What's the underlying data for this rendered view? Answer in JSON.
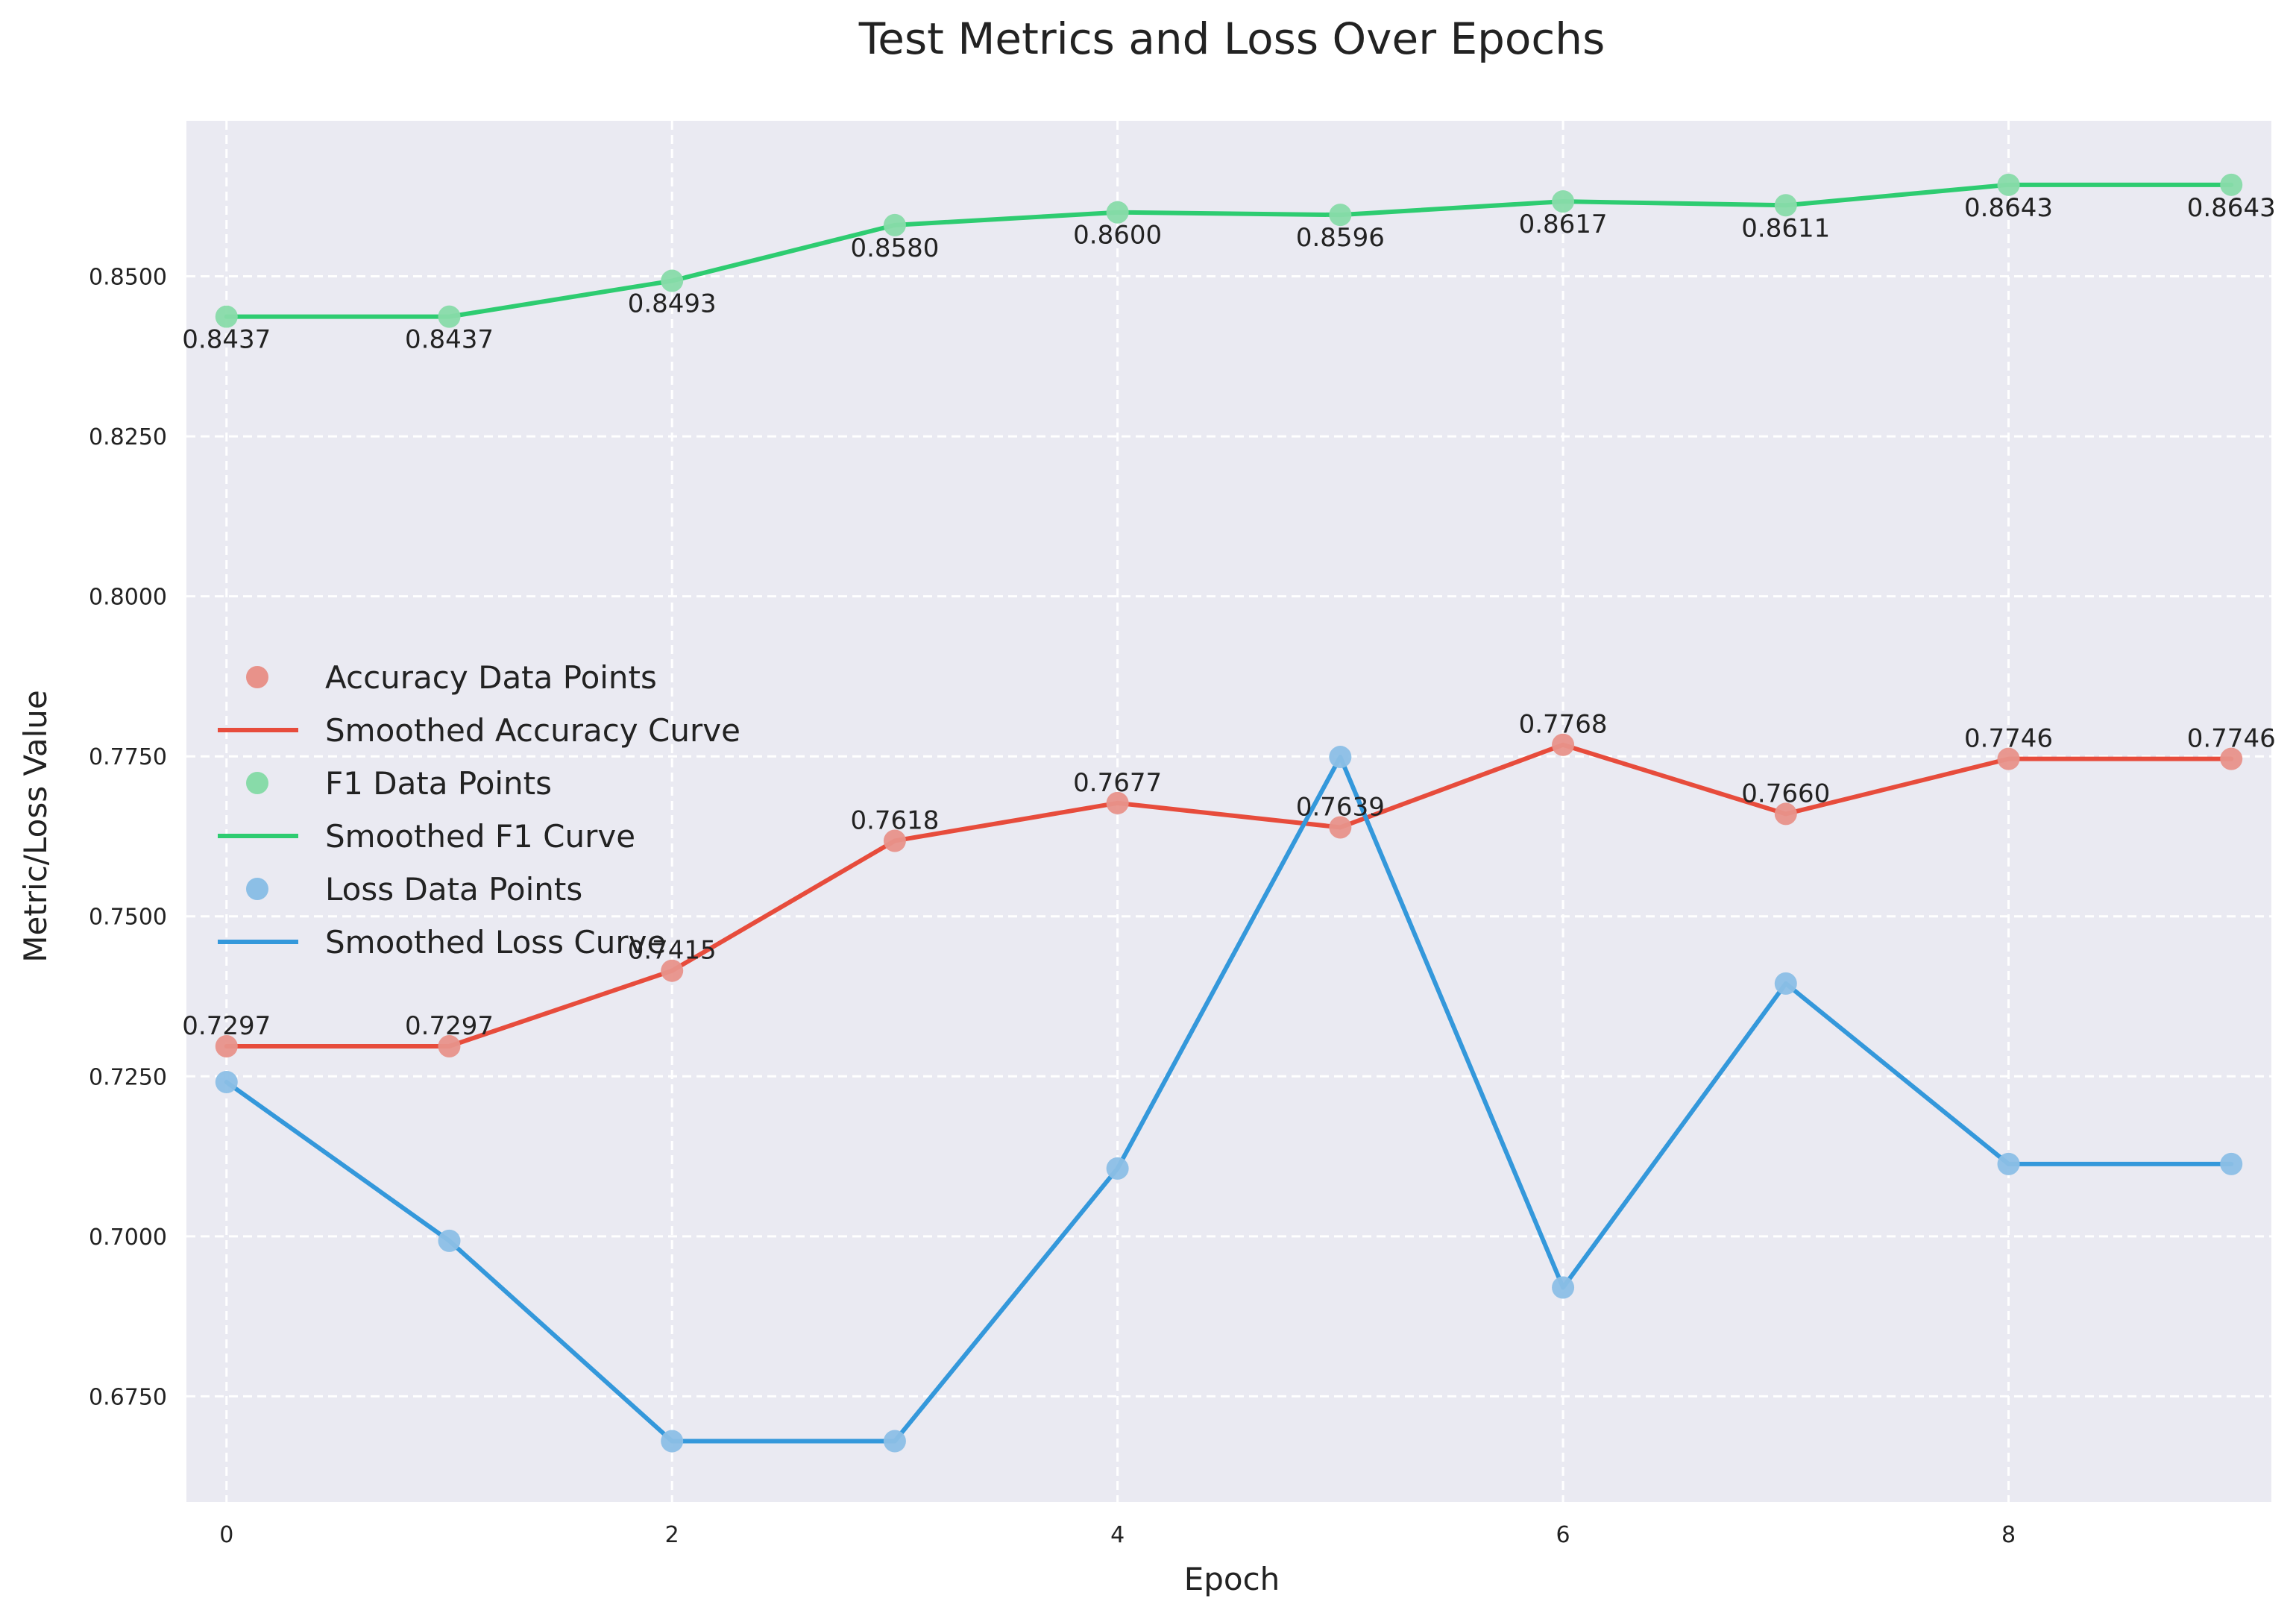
{
  "chart_data": {
    "type": "line",
    "title": "Test Metrics and Loss Over Epochs",
    "xlabel": "Epoch",
    "ylabel": "Metric/Loss Value",
    "x": [
      0,
      1,
      2,
      3,
      4,
      5,
      6,
      7,
      8,
      9
    ],
    "xticks": [
      0,
      2,
      4,
      6,
      8
    ],
    "xtick_labels": [
      "0",
      "2",
      "4",
      "6",
      "8"
    ],
    "yticks": [
      0.675,
      0.7,
      0.725,
      0.75,
      0.775,
      0.8,
      0.825,
      0.85
    ],
    "ytick_labels": [
      "0.6750",
      "0.7000",
      "0.7250",
      "0.7500",
      "0.7750",
      "0.8000",
      "0.8250",
      "0.8500"
    ],
    "xlim": [
      -0.18,
      9.18
    ],
    "ylim": [
      0.6585,
      0.8743
    ],
    "grid": true,
    "legend_position": "center-left",
    "series": [
      {
        "key": "accuracy",
        "color": "#e74c3c",
        "point_color": "#e8928a",
        "values": [
          0.7297,
          0.7297,
          0.7415,
          0.7618,
          0.7677,
          0.7639,
          0.7768,
          0.766,
          0.7746,
          0.7746
        ],
        "value_labels": [
          "0.7297",
          "0.7297",
          "0.7415",
          "0.7618",
          "0.7677",
          "0.7639",
          "0.7768",
          "0.7660",
          "0.7746",
          "0.7746"
        ],
        "label_position": "above"
      },
      {
        "key": "f1",
        "color": "#2ecc71",
        "point_color": "#88dba9",
        "values": [
          0.8437,
          0.8437,
          0.8493,
          0.858,
          0.86,
          0.8596,
          0.8617,
          0.8611,
          0.8643,
          0.8643
        ],
        "value_labels": [
          "0.8437",
          "0.8437",
          "0.8493",
          "0.8580",
          "0.8600",
          "0.8596",
          "0.8617",
          "0.8611",
          "0.8643",
          "0.8643"
        ],
        "label_position": "below"
      },
      {
        "key": "loss",
        "color": "#3498db",
        "point_color": "#8cbfe6",
        "values": [
          0.7241,
          0.6993,
          0.668,
          0.668,
          0.7106,
          0.7749,
          0.692,
          0.7395,
          0.7113,
          0.7113
        ],
        "value_labels": [],
        "label_position": "none"
      }
    ],
    "legend": [
      {
        "label": "Accuracy Data Points",
        "kind": "marker",
        "series": "accuracy"
      },
      {
        "label": "Smoothed Accuracy Curve",
        "kind": "line",
        "series": "accuracy"
      },
      {
        "label": "F1 Data Points",
        "kind": "marker",
        "series": "f1"
      },
      {
        "label": "Smoothed F1 Curve",
        "kind": "line",
        "series": "f1"
      },
      {
        "label": "Loss Data Points",
        "kind": "marker",
        "series": "loss"
      },
      {
        "label": "Smoothed Loss Curve",
        "kind": "line",
        "series": "loss"
      }
    ]
  }
}
